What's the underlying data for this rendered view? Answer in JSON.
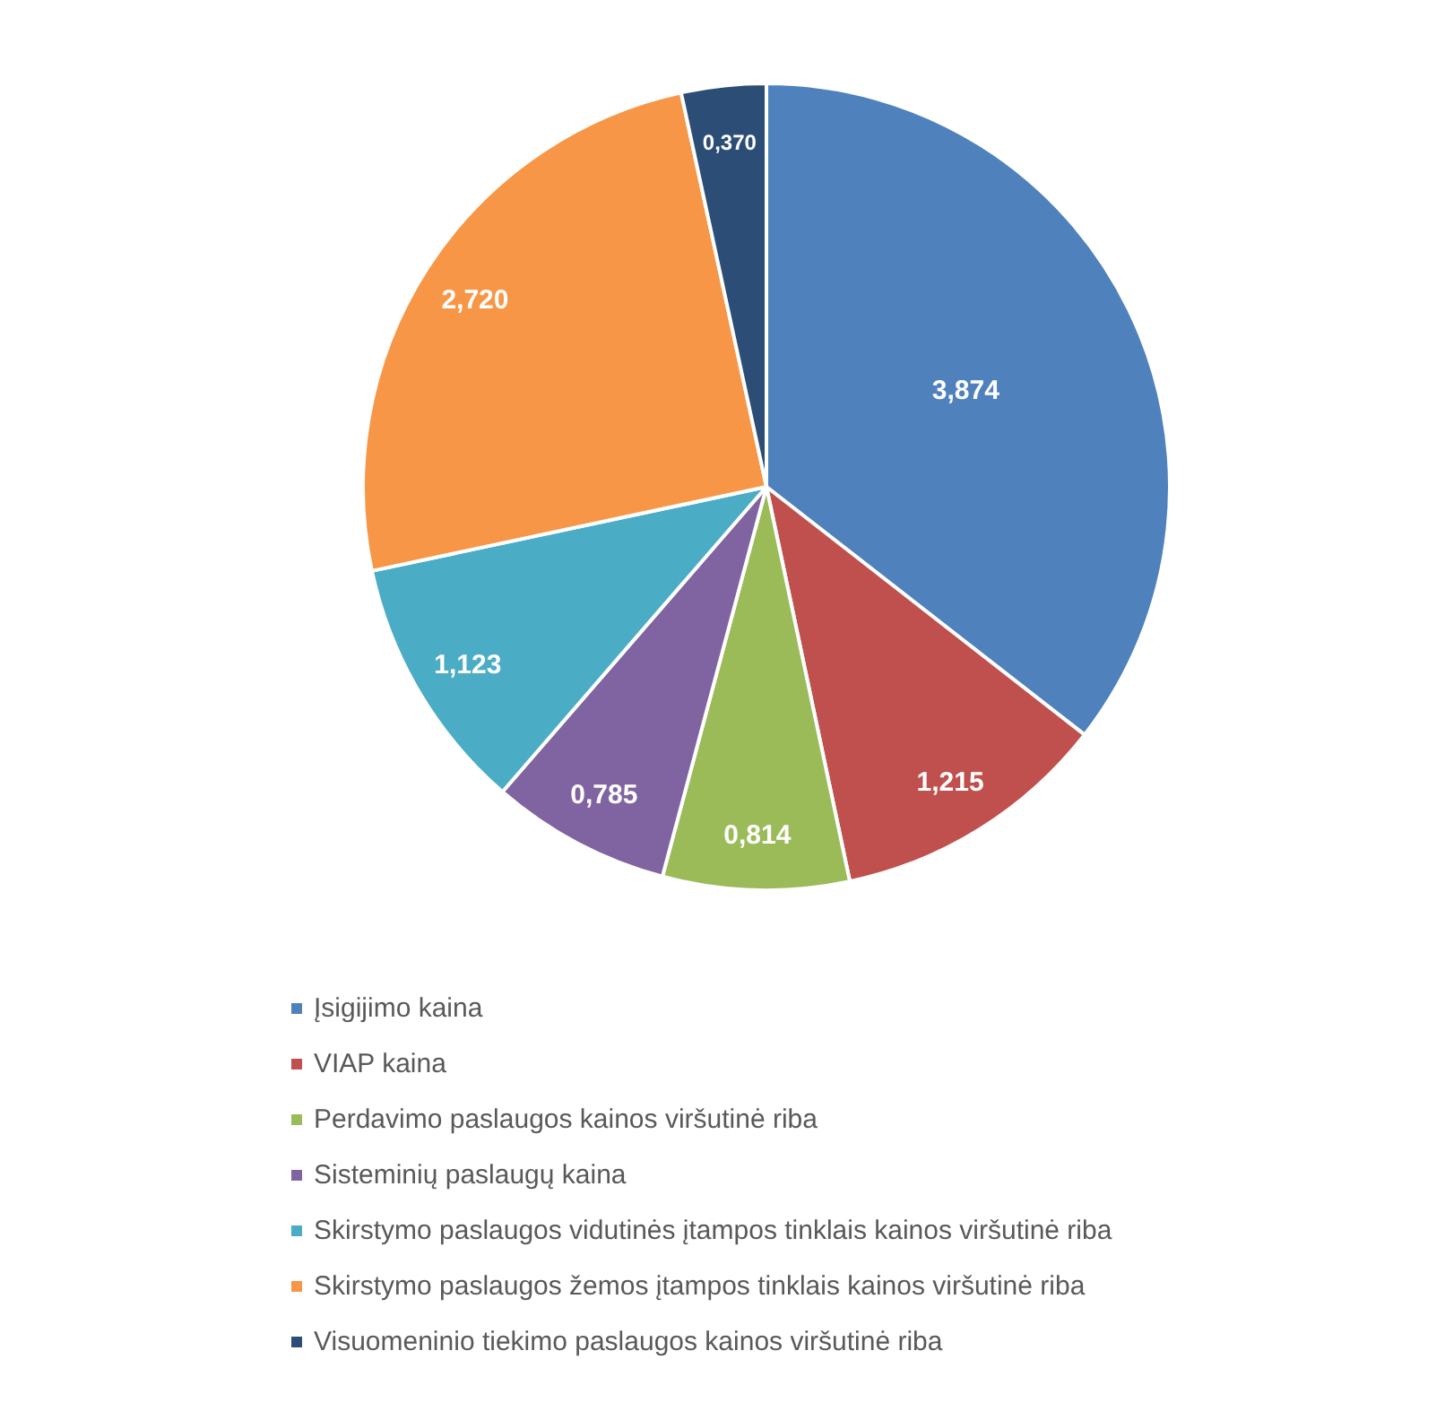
{
  "chart_data": {
    "type": "pie",
    "categories": [
      "Įsigijimo kaina",
      "VIAP kaina",
      "Perdavimo paslaugos kainos viršutinė riba",
      "Sisteminių paslaugų kaina",
      "Skirstymo paslaugos vidutinės įtampos tinklais kainos viršutinė riba",
      "Skirstymo paslaugos žemos įtampos tinklais kainos viršutinė riba",
      "Visuomeninio tiekimo paslaugos kainos viršutinė riba"
    ],
    "values": [
      3.874,
      1.215,
      0.814,
      0.785,
      1.123,
      2.72,
      0.37
    ],
    "value_labels": [
      "3,874",
      "1,215",
      "0,814",
      "0,785",
      "1,123",
      "2,720",
      "0,370"
    ],
    "colors": [
      "#4f81bd",
      "#c0504d",
      "#9bbb59",
      "#8064a2",
      "#4bacc6",
      "#f79646",
      "#2c4d75"
    ],
    "legend": "bottom"
  }
}
